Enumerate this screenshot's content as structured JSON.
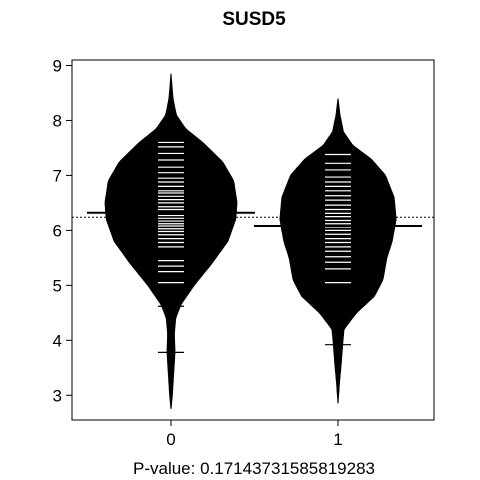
{
  "chart_data": {
    "type": "beanplot",
    "title": "SUSD5",
    "xlabel": "P-value: 0.17143731585819283",
    "ylabel": "",
    "categories": [
      "0",
      "1"
    ],
    "ylim": [
      2.55,
      9.1
    ],
    "yticks": [
      "3",
      "4",
      "5",
      "6",
      "7",
      "8",
      "9"
    ],
    "overall_mean": 6.24,
    "grid": false,
    "colors": {
      "bean": "#000000",
      "line": "#ffffff",
      "background": "#ffffff"
    },
    "series": [
      {
        "name": "0",
        "mean": 6.32,
        "y_min": 2.75,
        "y_max": 8.85,
        "density": [
          [
            2.75,
            0.0
          ],
          [
            3.0,
            0.02
          ],
          [
            3.4,
            0.04
          ],
          [
            3.78,
            0.06
          ],
          [
            4.1,
            0.05
          ],
          [
            4.4,
            0.07
          ],
          [
            4.65,
            0.15
          ],
          [
            5.0,
            0.35
          ],
          [
            5.4,
            0.62
          ],
          [
            5.8,
            0.86
          ],
          [
            6.2,
            0.98
          ],
          [
            6.5,
            1.0
          ],
          [
            6.9,
            0.95
          ],
          [
            7.25,
            0.78
          ],
          [
            7.6,
            0.48
          ],
          [
            7.85,
            0.22
          ],
          [
            8.1,
            0.08
          ],
          [
            8.4,
            0.03
          ],
          [
            8.85,
            0.0
          ]
        ],
        "observations": [
          3.78,
          4.62,
          5.05,
          5.25,
          5.35,
          5.45,
          5.7,
          5.78,
          5.85,
          5.92,
          5.98,
          6.03,
          6.08,
          6.12,
          6.17,
          6.22,
          6.27,
          6.32,
          6.38,
          6.43,
          6.5,
          6.56,
          6.62,
          6.68,
          6.72,
          6.8,
          6.88,
          6.95,
          7.05,
          7.15,
          7.28,
          7.4,
          7.52,
          7.6,
          7.85
        ]
      },
      {
        "name": "1",
        "mean": 6.08,
        "y_min": 2.85,
        "y_max": 8.4,
        "density": [
          [
            2.85,
            0.0
          ],
          [
            3.2,
            0.02
          ],
          [
            3.6,
            0.05
          ],
          [
            3.92,
            0.07
          ],
          [
            4.2,
            0.09
          ],
          [
            4.5,
            0.28
          ],
          [
            4.8,
            0.55
          ],
          [
            5.1,
            0.68
          ],
          [
            5.5,
            0.74
          ],
          [
            5.8,
            0.82
          ],
          [
            6.2,
            0.88
          ],
          [
            6.6,
            0.85
          ],
          [
            7.0,
            0.72
          ],
          [
            7.3,
            0.5
          ],
          [
            7.55,
            0.22
          ],
          [
            7.8,
            0.08
          ],
          [
            8.1,
            0.03
          ],
          [
            8.4,
            0.0
          ]
        ],
        "observations": [
          3.92,
          5.05,
          5.3,
          5.42,
          5.52,
          5.62,
          5.7,
          5.78,
          5.85,
          5.93,
          6.0,
          6.06,
          6.12,
          6.18,
          6.25,
          6.31,
          6.38,
          6.46,
          6.55,
          6.63,
          6.72,
          6.8,
          6.88,
          6.97,
          7.1,
          7.22,
          7.38
        ]
      }
    ]
  }
}
